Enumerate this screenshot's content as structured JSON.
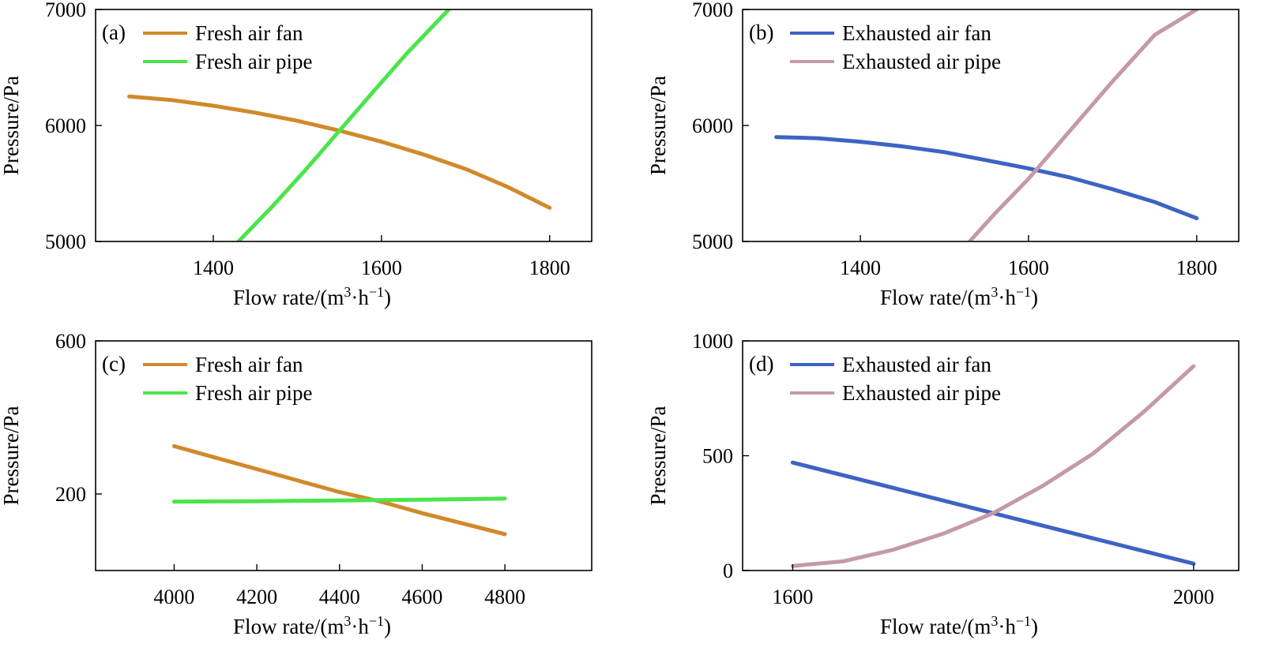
{
  "chart_data": [
    {
      "panel": "(a)",
      "type": "line",
      "title": "",
      "xlabel": "Flow rate/(m³·h⁻¹)",
      "ylabel": "Pressure/Pa",
      "xlim": [
        1260,
        1850
      ],
      "ylim": [
        5000,
        7000
      ],
      "xticks": [
        1400,
        1600,
        1800
      ],
      "yticks": [
        5000,
        6000,
        7000
      ],
      "grid": false,
      "legend_position": "top-left",
      "series": [
        {
          "name": "Fresh air fan",
          "color": "#d08a2a",
          "points": [
            [
              1300,
              6250
            ],
            [
              1350,
              6220
            ],
            [
              1400,
              6170
            ],
            [
              1450,
              6110
            ],
            [
              1500,
              6040
            ],
            [
              1550,
              5955
            ],
            [
              1600,
              5860
            ],
            [
              1650,
              5750
            ],
            [
              1700,
              5625
            ],
            [
              1750,
              5470
            ],
            [
              1800,
              5290
            ]
          ]
        },
        {
          "name": "Fresh air pipe",
          "color": "#4ce44c",
          "points": [
            [
              1430,
              5000
            ],
            [
              1470,
              5300
            ],
            [
              1510,
              5620
            ],
            [
              1550,
              5955
            ],
            [
              1590,
              6290
            ],
            [
              1630,
              6620
            ],
            [
              1680,
              7000
            ]
          ]
        }
      ]
    },
    {
      "panel": "(b)",
      "type": "line",
      "title": "",
      "xlabel": "Flow rate/(m³·h⁻¹)",
      "ylabel": "Pressure/Pa",
      "xlim": [
        1260,
        1850
      ],
      "ylim": [
        5000,
        7000
      ],
      "xticks": [
        1400,
        1600,
        1800
      ],
      "yticks": [
        5000,
        6000,
        7000
      ],
      "grid": false,
      "legend_position": "top-left",
      "series": [
        {
          "name": "Exhausted air fan",
          "color": "#3d63c4",
          "points": [
            [
              1300,
              5900
            ],
            [
              1350,
              5890
            ],
            [
              1400,
              5860
            ],
            [
              1450,
              5820
            ],
            [
              1500,
              5770
            ],
            [
              1550,
              5700
            ],
            [
              1600,
              5630
            ],
            [
              1650,
              5550
            ],
            [
              1700,
              5450
            ],
            [
              1750,
              5340
            ],
            [
              1800,
              5200
            ]
          ]
        },
        {
          "name": "Exhausted air pipe",
          "color": "#c49aa6",
          "points": [
            [
              1530,
              5000
            ],
            [
              1560,
              5240
            ],
            [
              1600,
              5540
            ],
            [
              1650,
              5960
            ],
            [
              1700,
              6380
            ],
            [
              1750,
              6780
            ],
            [
              1800,
              7000
            ]
          ]
        }
      ]
    },
    {
      "panel": "(c)",
      "type": "line",
      "title": "",
      "xlabel": "Flow rate/(m³·h⁻¹)",
      "ylabel": "Pressure/Pa",
      "xlim": [
        3810,
        5010
      ],
      "ylim": [
        0,
        600
      ],
      "xticks": [
        4000,
        4200,
        4400,
        4600,
        4800
      ],
      "yticks": [
        200,
        600
      ],
      "grid": false,
      "legend_position": "top-left",
      "series": [
        {
          "name": "Fresh air fan",
          "color": "#d08a2a",
          "points": [
            [
              4000,
              325
            ],
            [
              4200,
              265
            ],
            [
              4400,
              205
            ],
            [
              4500,
              180
            ],
            [
              4600,
              150
            ],
            [
              4800,
              95
            ]
          ]
        },
        {
          "name": "Fresh air pipe",
          "color": "#4ce44c",
          "points": [
            [
              4000,
              180
            ],
            [
              4200,
              181
            ],
            [
              4400,
              183
            ],
            [
              4600,
              185
            ],
            [
              4800,
              188
            ]
          ]
        }
      ]
    },
    {
      "panel": "(d)",
      "type": "line",
      "title": "",
      "xlabel": "Flow rate/(m³·h⁻¹)",
      "ylabel": "Pressure/Pa",
      "xlim": [
        1550,
        2045
      ],
      "ylim": [
        0,
        1000
      ],
      "xticks": [
        1600,
        2000
      ],
      "yticks": [
        0,
        500,
        1000
      ],
      "grid": false,
      "legend_position": "top-left",
      "series": [
        {
          "name": "Exhausted air fan",
          "color": "#3d63c4",
          "points": [
            [
              1600,
              470
            ],
            [
              1700,
              360
            ],
            [
              1800,
              250
            ],
            [
              1900,
              140
            ],
            [
              2000,
              30
            ]
          ]
        },
        {
          "name": "Exhausted air pipe",
          "color": "#c49aa6",
          "points": [
            [
              1600,
              20
            ],
            [
              1650,
              40
            ],
            [
              1700,
              90
            ],
            [
              1750,
              160
            ],
            [
              1800,
              250
            ],
            [
              1850,
              370
            ],
            [
              1900,
              510
            ],
            [
              1950,
              690
            ],
            [
              2000,
              890
            ]
          ]
        }
      ]
    }
  ]
}
